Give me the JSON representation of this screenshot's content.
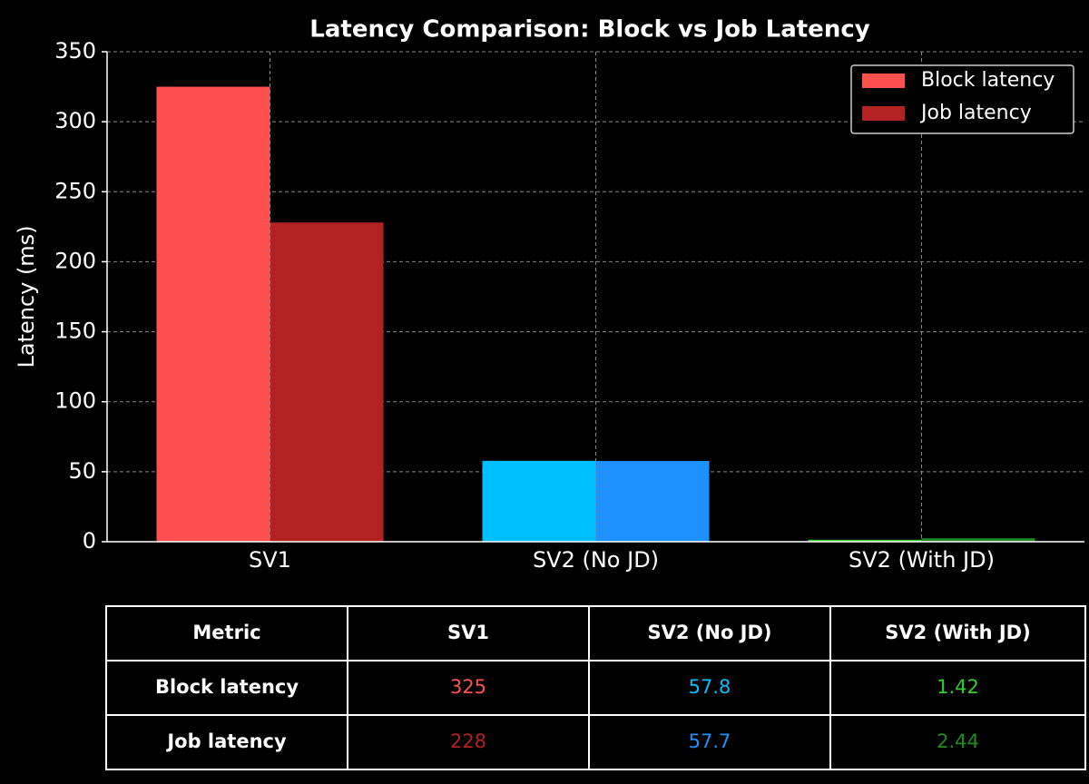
{
  "chart_data": {
    "type": "bar",
    "title": "Latency Comparison: Block vs Job Latency",
    "ylabel": "Latency (ms)",
    "categories": [
      "SV1",
      "SV2 (No JD)",
      "SV2 (With JD)"
    ],
    "series": [
      {
        "name": "Block latency",
        "colors": [
          "#ff5050",
          "#00bfff",
          "#32cd32"
        ],
        "values": [
          325,
          57.8,
          1.42
        ]
      },
      {
        "name": "Job latency",
        "colors": [
          "#b22222",
          "#1e90ff",
          "#228b22"
        ],
        "values": [
          228,
          57.7,
          2.44
        ]
      }
    ],
    "ylim": [
      0,
      350
    ],
    "yticks": [
      0,
      50,
      100,
      150,
      200,
      250,
      300,
      350
    ],
    "grid": true,
    "legend": "upper right"
  },
  "table": {
    "corner": "Metric"
  }
}
